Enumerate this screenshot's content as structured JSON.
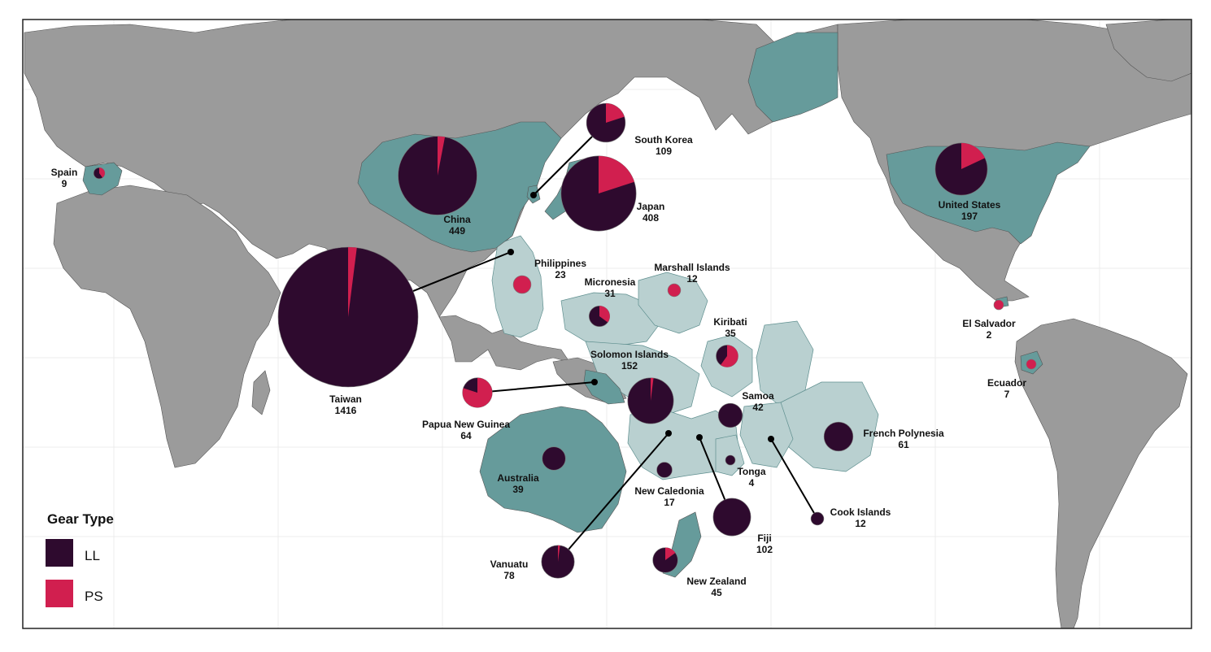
{
  "legend": {
    "title": "Gear Type",
    "items": [
      {
        "key": "LL",
        "label": "LL",
        "color": "#2e0a2e"
      },
      {
        "key": "PS",
        "label": "PS",
        "color": "#d11f4f"
      }
    ]
  },
  "colors": {
    "land": "#9b9b9b",
    "flag_state": "#669b9b",
    "eez": "#b9d0d0",
    "border": "#555555",
    "leader": "#000000"
  },
  "countries": [
    {
      "id": "taiwan",
      "name": "Taiwan",
      "value": "1416",
      "total": 1416,
      "ps_share": 0.02
    },
    {
      "id": "china",
      "name": "China",
      "value": "449",
      "total": 449,
      "ps_share": 0.03
    },
    {
      "id": "japan",
      "name": "Japan",
      "value": "408",
      "total": 408,
      "ps_share": 0.2
    },
    {
      "id": "united-states",
      "name": "United States",
      "value": "197",
      "total": 197,
      "ps_share": 0.18
    },
    {
      "id": "solomon-islands",
      "name": "Solomon Islands",
      "value": "152",
      "total": 152,
      "ps_share": 0.02
    },
    {
      "id": "south-korea",
      "name": "South Korea",
      "value": "109",
      "total": 109,
      "ps_share": 0.2
    },
    {
      "id": "fiji",
      "name": "Fiji",
      "value": "102",
      "total": 102,
      "ps_share": 0
    },
    {
      "id": "vanuatu",
      "name": "Vanuatu",
      "value": "78",
      "total": 78,
      "ps_share": 0.02
    },
    {
      "id": "papua-new-guinea",
      "name": "Papua New Guinea",
      "value": "64",
      "total": 64,
      "ps_share": 0.8
    },
    {
      "id": "french-polynesia",
      "name": "French Polynesia",
      "value": "61",
      "total": 61,
      "ps_share": 0
    },
    {
      "id": "new-zealand",
      "name": "New Zealand",
      "value": "45",
      "total": 45,
      "ps_share": 0.15
    },
    {
      "id": "samoa",
      "name": "Samoa",
      "value": "42",
      "total": 42,
      "ps_share": 0
    },
    {
      "id": "australia",
      "name": "Australia",
      "value": "39",
      "total": 39,
      "ps_share": 0
    },
    {
      "id": "kiribati",
      "name": "Kiribati",
      "value": "35",
      "total": 35,
      "ps_share": 0.6
    },
    {
      "id": "micronesia",
      "name": "Micronesia",
      "value": "31",
      "total": 31,
      "ps_share": 0.35
    },
    {
      "id": "philippines",
      "name": "Philippines",
      "value": "23",
      "total": 23,
      "ps_share": 1
    },
    {
      "id": "new-caledonia",
      "name": "New Caledonia",
      "value": "17",
      "total": 17,
      "ps_share": 0
    },
    {
      "id": "marshall-islands",
      "name": "Marshall Islands",
      "value": "12",
      "total": 12,
      "ps_share": 1
    },
    {
      "id": "cook-islands",
      "name": "Cook Islands",
      "value": "12",
      "total": 12,
      "ps_share": 0
    },
    {
      "id": "spain",
      "name": "Spain",
      "value": "9",
      "total": 9,
      "ps_share": 0.4
    },
    {
      "id": "ecuador",
      "name": "Ecuador",
      "value": "7",
      "total": 7,
      "ps_share": 1
    },
    {
      "id": "tonga",
      "name": "Tonga",
      "value": "4",
      "total": 4,
      "ps_share": 0
    },
    {
      "id": "el-salvador",
      "name": "El Salvador",
      "value": "2",
      "total": 2,
      "ps_share": 1
    }
  ]
}
